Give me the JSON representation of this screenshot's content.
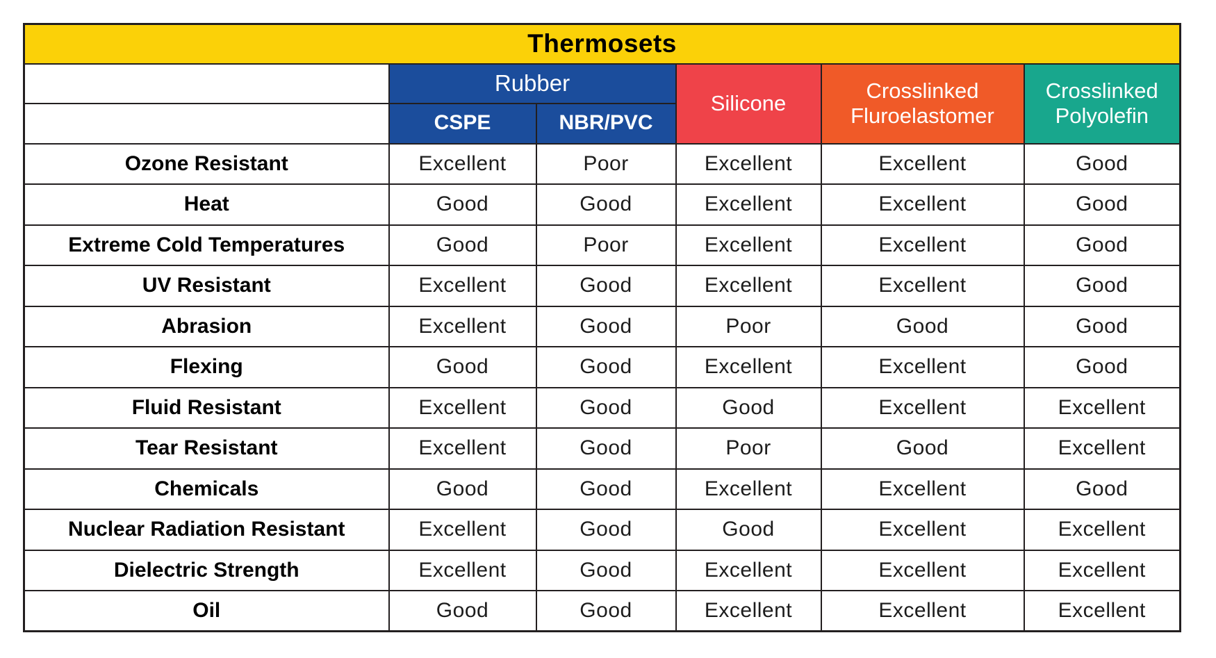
{
  "title": "Thermosets",
  "colors": {
    "title_bg": "#fbd108",
    "rubber_bg": "#1b4d9c",
    "silicone_bg": "#ef4349",
    "fluroelastomer_bg": "#f05a28",
    "polyolefin_bg": "#18a78d",
    "border": "#231f20",
    "header_text": "#ffffff",
    "title_text": "#000000"
  },
  "table": {
    "group_header": "Rubber",
    "columns": [
      {
        "label": "CSPE",
        "group": "Rubber"
      },
      {
        "label": "NBR/PVC",
        "group": "Rubber"
      },
      {
        "label": "Silicone"
      },
      {
        "label": "Crosslinked Fluroelastomer"
      },
      {
        "label": "Crosslinked Polyolefin"
      }
    ],
    "rows": [
      {
        "label": "Ozone Resistant",
        "values": [
          "Excellent",
          "Poor",
          "Excellent",
          "Excellent",
          "Good"
        ]
      },
      {
        "label": "Heat",
        "values": [
          "Good",
          "Good",
          "Excellent",
          "Excellent",
          "Good"
        ]
      },
      {
        "label": "Extreme Cold Temperatures",
        "values": [
          "Good",
          "Poor",
          "Excellent",
          "Excellent",
          "Good"
        ]
      },
      {
        "label": "UV Resistant",
        "values": [
          "Excellent",
          "Good",
          "Excellent",
          "Excellent",
          "Good"
        ]
      },
      {
        "label": "Abrasion",
        "values": [
          "Excellent",
          "Good",
          "Poor",
          "Good",
          "Good"
        ]
      },
      {
        "label": "Flexing",
        "values": [
          "Good",
          "Good",
          "Excellent",
          "Excellent",
          "Good"
        ]
      },
      {
        "label": "Fluid Resistant",
        "values": [
          "Excellent",
          "Good",
          "Good",
          "Excellent",
          "Excellent"
        ]
      },
      {
        "label": "Tear Resistant",
        "values": [
          "Excellent",
          "Good",
          "Poor",
          "Good",
          "Excellent"
        ]
      },
      {
        "label": "Chemicals",
        "values": [
          "Good",
          "Good",
          "Excellent",
          "Excellent",
          "Good"
        ]
      },
      {
        "label": "Nuclear Radiation Resistant",
        "values": [
          "Excellent",
          "Good",
          "Good",
          "Excellent",
          "Excellent"
        ]
      },
      {
        "label": "Dielectric Strength",
        "values": [
          "Excellent",
          "Good",
          "Excellent",
          "Excellent",
          "Excellent"
        ]
      },
      {
        "label": "Oil",
        "values": [
          "Good",
          "Good",
          "Excellent",
          "Excellent",
          "Excellent"
        ]
      }
    ]
  }
}
